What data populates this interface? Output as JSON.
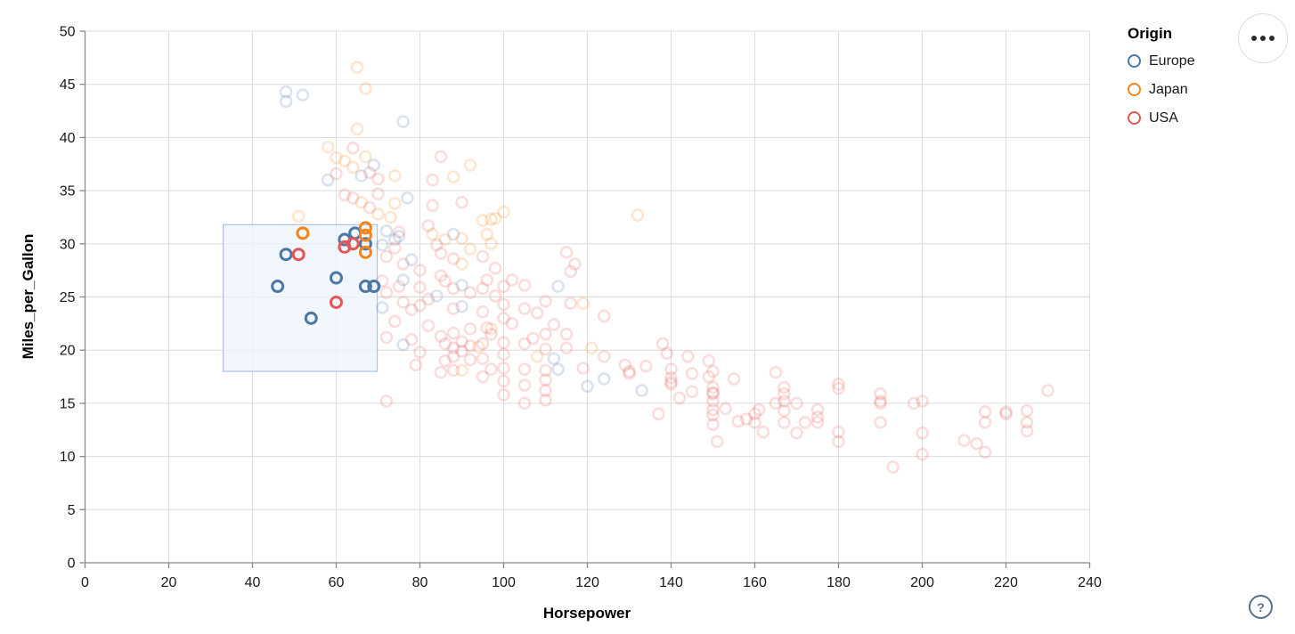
{
  "chart_data": {
    "type": "scatter",
    "xlabel": "Horsepower",
    "ylabel": "Miles_per_Gallon",
    "xlim": [
      0,
      240
    ],
    "ylim": [
      0,
      50
    ],
    "xticks": [
      0,
      20,
      40,
      60,
      80,
      100,
      120,
      140,
      160,
      180,
      200,
      220,
      240
    ],
    "yticks": [
      0,
      5,
      10,
      15,
      20,
      25,
      30,
      35,
      40,
      45,
      50
    ],
    "grid": true,
    "grid_color": "#dddddd",
    "axis_color": "#888888",
    "legend": {
      "title": "Origin",
      "position": "top-right",
      "entries": [
        {
          "label": "Europe",
          "color": "#4c78a8"
        },
        {
          "label": "Japan",
          "color": "#f58518"
        },
        {
          "label": "USA",
          "color": "#e45756"
        }
      ]
    },
    "brush": {
      "x": [
        33,
        69.8
      ],
      "y": [
        18,
        31.8
      ],
      "fill": "#edf3fc",
      "stroke": "#aac2ea"
    },
    "unselected_opacity": 0.2,
    "series": [
      {
        "name": "Europe",
        "color": "#4c78a8",
        "selected": [
          [
            48,
            29
          ],
          [
            46,
            26
          ],
          [
            60,
            26.8
          ],
          [
            54,
            23
          ],
          [
            67,
            26
          ],
          [
            69,
            26
          ],
          [
            64.5,
            31
          ],
          [
            67,
            30
          ],
          [
            62,
            30.4
          ]
        ],
        "unselected": [
          [
            48,
            44.3
          ],
          [
            48,
            43.4
          ],
          [
            52,
            44
          ],
          [
            76,
            41.5
          ],
          [
            69,
            37.4
          ],
          [
            66,
            36.4
          ],
          [
            58,
            36
          ],
          [
            77,
            34.3
          ],
          [
            72,
            31.2
          ],
          [
            74,
            30.4
          ],
          [
            71,
            29.9
          ],
          [
            75,
            30.7
          ],
          [
            78,
            28.5
          ],
          [
            88,
            30.9
          ],
          [
            90,
            26.1
          ],
          [
            84,
            25.1
          ],
          [
            90,
            24.1
          ],
          [
            71,
            24
          ],
          [
            76,
            26.6
          ],
          [
            76,
            20.5
          ],
          [
            113,
            26
          ],
          [
            112,
            19.2
          ],
          [
            113,
            18.2
          ],
          [
            124,
            17.3
          ],
          [
            120,
            16.6
          ],
          [
            133,
            16.2
          ]
        ]
      },
      {
        "name": "Japan",
        "color": "#f58518",
        "selected": [
          [
            52,
            31
          ],
          [
            67,
            31.5
          ],
          [
            67,
            30.8
          ],
          [
            67,
            29.2
          ]
        ],
        "unselected": [
          [
            65,
            46.6
          ],
          [
            67,
            44.6
          ],
          [
            65,
            40.8
          ],
          [
            58,
            39.1
          ],
          [
            60,
            38.1
          ],
          [
            62,
            37.8
          ],
          [
            67,
            38.2
          ],
          [
            64,
            37.2
          ],
          [
            74,
            36.4
          ],
          [
            92,
            37.4
          ],
          [
            88,
            36.3
          ],
          [
            66,
            33.9
          ],
          [
            74,
            33.8
          ],
          [
            95,
            32.2
          ],
          [
            98,
            32.4
          ],
          [
            100,
            33
          ],
          [
            97,
            32.3
          ],
          [
            132,
            32.7
          ],
          [
            73,
            32.5
          ],
          [
            70,
            32.8
          ],
          [
            51,
            32.6
          ],
          [
            90,
            30.5
          ],
          [
            92,
            29.5
          ],
          [
            96,
            30.9
          ],
          [
            97,
            30
          ],
          [
            83,
            30.9
          ],
          [
            86,
            30.4
          ],
          [
            90,
            28.1
          ],
          [
            119,
            24.4
          ],
          [
            121,
            20.2
          ],
          [
            108,
            19.4
          ],
          [
            90,
            18.1
          ],
          [
            94,
            20.3
          ],
          [
            97,
            22
          ]
        ]
      },
      {
        "name": "USA",
        "color": "#e45756",
        "selected": [
          [
            51,
            29
          ],
          [
            60,
            24.5
          ],
          [
            64,
            30
          ],
          [
            62,
            29.7
          ]
        ],
        "unselected": [
          [
            64,
            39
          ],
          [
            68,
            36.7
          ],
          [
            70,
            36.1
          ],
          [
            60,
            36.6
          ],
          [
            85,
            38.2
          ],
          [
            83,
            36
          ],
          [
            62,
            34.6
          ],
          [
            64,
            34.3
          ],
          [
            70,
            34.7
          ],
          [
            68,
            33.4
          ],
          [
            83,
            33.6
          ],
          [
            90,
            33.9
          ],
          [
            82,
            31.7
          ],
          [
            75,
            31.1
          ],
          [
            115,
            29.2
          ],
          [
            116,
            27.4
          ],
          [
            117,
            28.1
          ],
          [
            72,
            28.8
          ],
          [
            74,
            29.6
          ],
          [
            76,
            28.1
          ],
          [
            80,
            27.5
          ],
          [
            71,
            26.5
          ],
          [
            72,
            25.4
          ],
          [
            75,
            26
          ],
          [
            76,
            24.5
          ],
          [
            78,
            23.8
          ],
          [
            80,
            24.2
          ],
          [
            84,
            29.9
          ],
          [
            85,
            29.1
          ],
          [
            88,
            28.6
          ],
          [
            88,
            25.8
          ],
          [
            95,
            28.8
          ],
          [
            85,
            27
          ],
          [
            86,
            26.5
          ],
          [
            92,
            25.4
          ],
          [
            95,
            25.8
          ],
          [
            96,
            26.6
          ],
          [
            98,
            27.7
          ],
          [
            100,
            26
          ],
          [
            102,
            26.6
          ],
          [
            105,
            26.1
          ],
          [
            98,
            25.1
          ],
          [
            100,
            24.3
          ],
          [
            88,
            23.9
          ],
          [
            95,
            23.6
          ],
          [
            100,
            23
          ],
          [
            105,
            23.9
          ],
          [
            108,
            23.5
          ],
          [
            110,
            24.6
          ],
          [
            116,
            24.4
          ],
          [
            102,
            22.5
          ],
          [
            96,
            22.1
          ],
          [
            92,
            22
          ],
          [
            88,
            21.6
          ],
          [
            85,
            21.3
          ],
          [
            86,
            20.6
          ],
          [
            88,
            20.2
          ],
          [
            90,
            20.8
          ],
          [
            92,
            20.4
          ],
          [
            95,
            20.6
          ],
          [
            97,
            21.5
          ],
          [
            100,
            20.7
          ],
          [
            72,
            21.2
          ],
          [
            74,
            22.7
          ],
          [
            78,
            21
          ],
          [
            80,
            19.8
          ],
          [
            82,
            22.3
          ],
          [
            79,
            18.6
          ],
          [
            80,
            25.9
          ],
          [
            82,
            24.8
          ],
          [
            105,
            20.6
          ],
          [
            107,
            21.1
          ],
          [
            110,
            21.5
          ],
          [
            112,
            22.4
          ],
          [
            115,
            21.5
          ],
          [
            110,
            20.1
          ],
          [
            115,
            20.2
          ],
          [
            90,
            19.9
          ],
          [
            88,
            19.4
          ],
          [
            86,
            19
          ],
          [
            92,
            19.1
          ],
          [
            95,
            19.2
          ],
          [
            100,
            19.6
          ],
          [
            100,
            18.3
          ],
          [
            100,
            17.1
          ],
          [
            100,
            15.8
          ],
          [
            105,
            18.2
          ],
          [
            105,
            16.7
          ],
          [
            105,
            15
          ],
          [
            85,
            17.9
          ],
          [
            88,
            18.1
          ],
          [
            95,
            17.5
          ],
          [
            97,
            18.2
          ],
          [
            110,
            18.1
          ],
          [
            110,
            17.2
          ],
          [
            110,
            16.2
          ],
          [
            110,
            15.3
          ],
          [
            72,
            15.2
          ],
          [
            130,
            18
          ],
          [
            129,
            18.6
          ],
          [
            130,
            17.8
          ],
          [
            124,
            23.2
          ],
          [
            124,
            19.4
          ],
          [
            119,
            18.3
          ],
          [
            134,
            18.5
          ],
          [
            138,
            20.6
          ],
          [
            139,
            19.7
          ],
          [
            140,
            18.2
          ],
          [
            140,
            17.4
          ],
          [
            140,
            16.8
          ],
          [
            144,
            19.4
          ],
          [
            145,
            17.8
          ],
          [
            149,
            19
          ],
          [
            149,
            17.5
          ],
          [
            150,
            16.5
          ],
          [
            150,
            15.9
          ],
          [
            150,
            15.2
          ],
          [
            150,
            14.4
          ],
          [
            150,
            13.9
          ],
          [
            150,
            13
          ],
          [
            151,
            11.4
          ],
          [
            155,
            17.3
          ],
          [
            156,
            13.3
          ],
          [
            160,
            13.2
          ],
          [
            161,
            14.4
          ],
          [
            162,
            12.3
          ],
          [
            165,
            17.9
          ],
          [
            167,
            16.5
          ],
          [
            167,
            15.9
          ],
          [
            167,
            15.2
          ],
          [
            167,
            14.3
          ],
          [
            167,
            13.2
          ],
          [
            170,
            12.2
          ],
          [
            172,
            13.2
          ],
          [
            175,
            14.4
          ],
          [
            175,
            13.7
          ],
          [
            175,
            13.2
          ],
          [
            180,
            16.8
          ],
          [
            180,
            16.4
          ],
          [
            180,
            12.3
          ],
          [
            180,
            11.4
          ],
          [
            190,
            15.9
          ],
          [
            190,
            15.2
          ],
          [
            190,
            13.2
          ],
          [
            200,
            15.2
          ],
          [
            200,
            12.2
          ],
          [
            200,
            10.2
          ],
          [
            193,
            9
          ],
          [
            210,
            11.5
          ],
          [
            213,
            11.2
          ],
          [
            215,
            14.2
          ],
          [
            215,
            13.2
          ],
          [
            215,
            10.4
          ],
          [
            220,
            14.2
          ],
          [
            225,
            14.3
          ],
          [
            225,
            13.2
          ],
          [
            225,
            12.4
          ],
          [
            230,
            16.2
          ],
          [
            165,
            15
          ],
          [
            150,
            18
          ],
          [
            140,
            17
          ],
          [
            198,
            15
          ],
          [
            220,
            14
          ],
          [
            190,
            15
          ],
          [
            170,
            15
          ],
          [
            160,
            14
          ],
          [
            150,
            16
          ],
          [
            153,
            14.5
          ],
          [
            158,
            13.5
          ],
          [
            145,
            16.1
          ],
          [
            137,
            14
          ],
          [
            142,
            15.5
          ]
        ]
      }
    ]
  },
  "controls": {
    "menu_button_icon": "ellipsis-dots",
    "help_button_label": "?"
  }
}
